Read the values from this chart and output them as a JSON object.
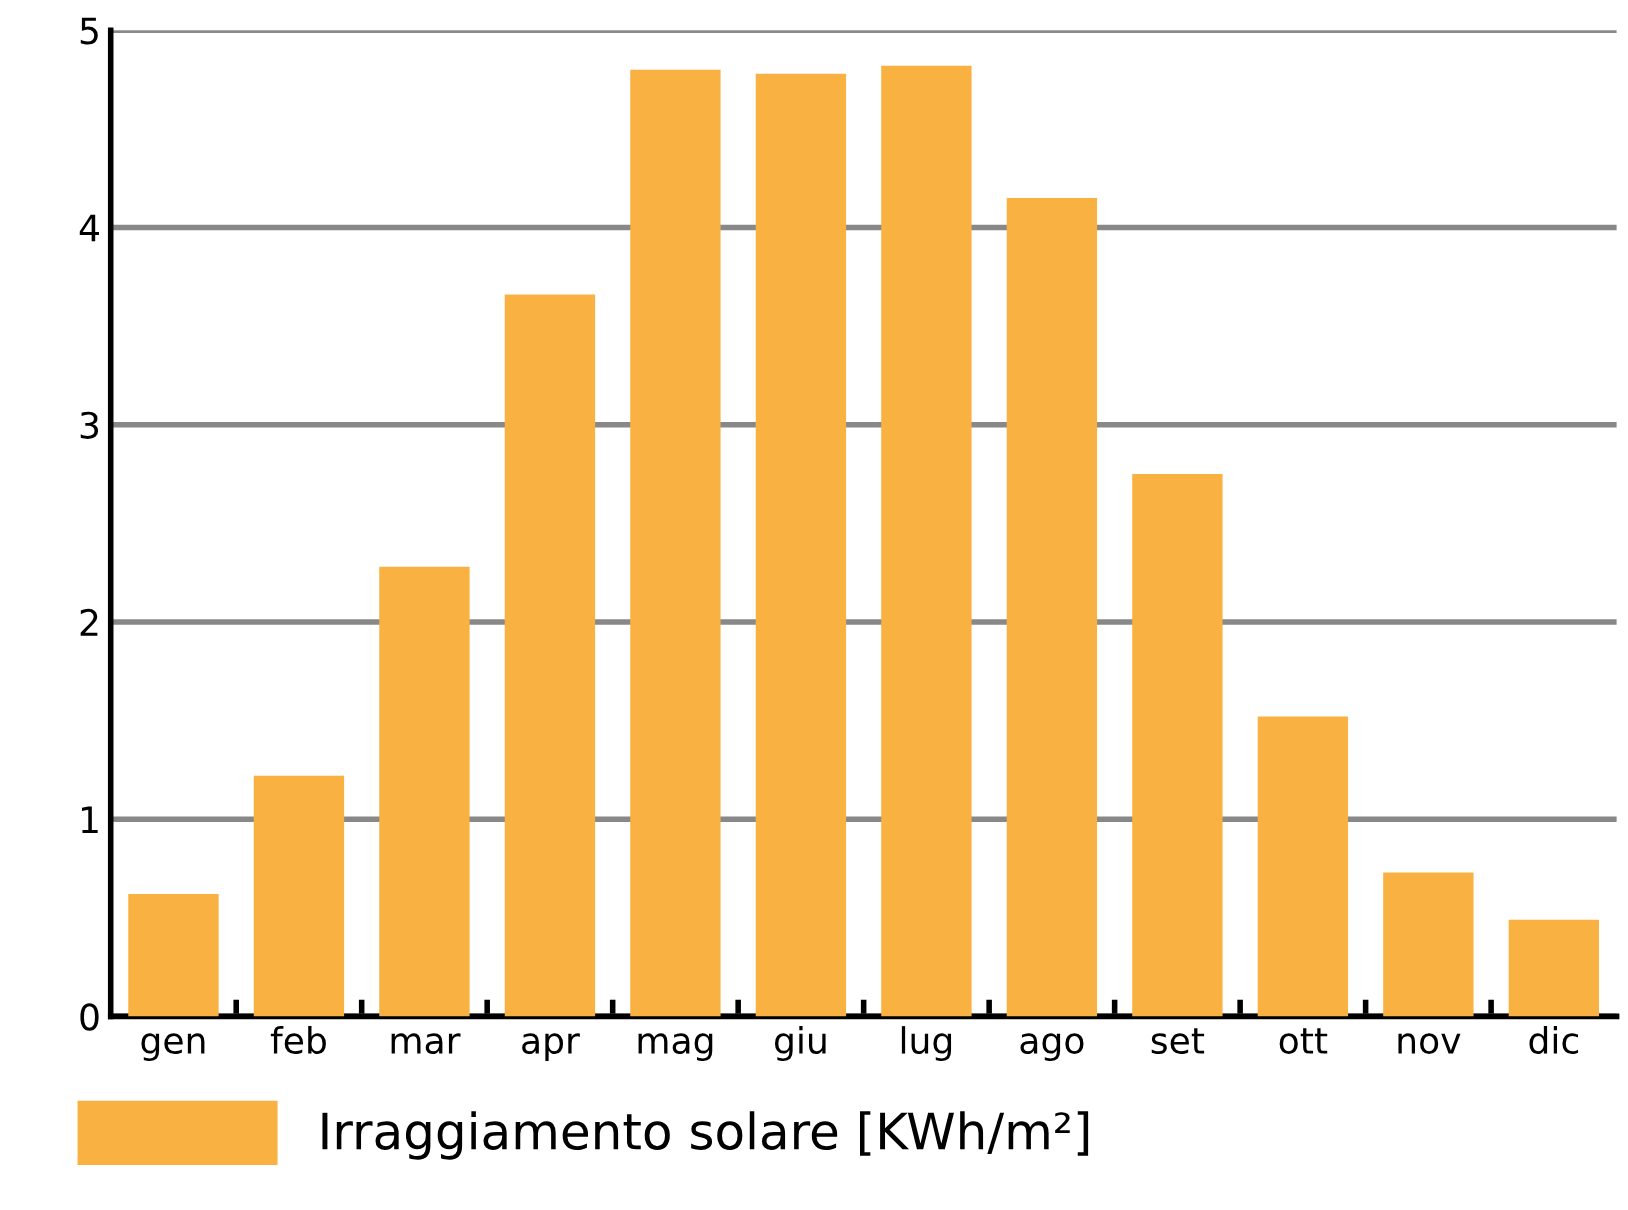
{
  "chart_data": {
    "type": "bar",
    "categories": [
      "gen",
      "feb",
      "mar",
      "apr",
      "mag",
      "giu",
      "lug",
      "ago",
      "set",
      "ott",
      "nov",
      "dic"
    ],
    "series": [
      {
        "name": "Irraggiamento solare [KWh/m²]",
        "color": "#f9b142",
        "values": [
          0.62,
          1.22,
          2.28,
          3.66,
          4.8,
          4.78,
          4.82,
          4.15,
          2.75,
          1.52,
          0.73,
          0.49
        ]
      }
    ],
    "ylim": [
      0,
      5
    ],
    "yticks": [
      0,
      1,
      2,
      3,
      4,
      5
    ],
    "grid": "y",
    "legend": "bottom"
  }
}
